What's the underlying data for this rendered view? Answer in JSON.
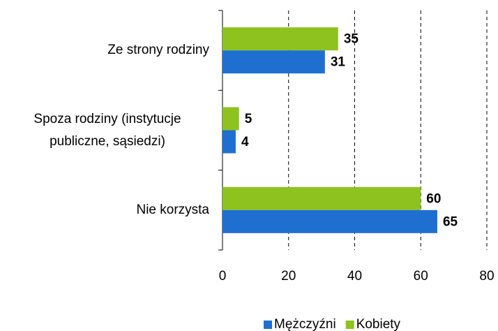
{
  "chart_data": {
    "type": "hbar",
    "categories": [
      "Ze strony rodziny",
      "Spoza rodziny (instytucje publiczne, sąsiedzi)",
      "Nie korzysta"
    ],
    "series": [
      {
        "name": "Mężczyźni",
        "color": "#1f6fd1",
        "values": [
          31,
          4,
          65
        ]
      },
      {
        "name": "Kobiety",
        "color": "#8dc21f",
        "values": [
          35,
          5,
          60
        ]
      }
    ],
    "xlim": [
      0,
      80
    ],
    "xticks": [
      0,
      20,
      40,
      60,
      80
    ],
    "grid": true,
    "legend": "bottom"
  }
}
